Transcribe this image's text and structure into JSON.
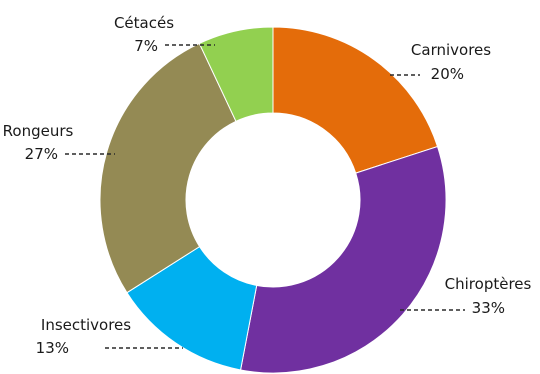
{
  "chart_data": {
    "type": "pie",
    "donut": true,
    "title": "",
    "categories": [
      "Carnivores",
      "Chiroptères",
      "Insectivores",
      "Rongeurs",
      "Cétacés"
    ],
    "values": [
      20,
      33,
      13,
      27,
      7
    ],
    "value_labels": [
      "20%",
      "33%",
      "13%",
      "27%",
      "7%"
    ],
    "colors": [
      "#e46c0a",
      "#7030a0",
      "#00b0f0",
      "#948a54",
      "#92d050"
    ],
    "legend": "none"
  }
}
